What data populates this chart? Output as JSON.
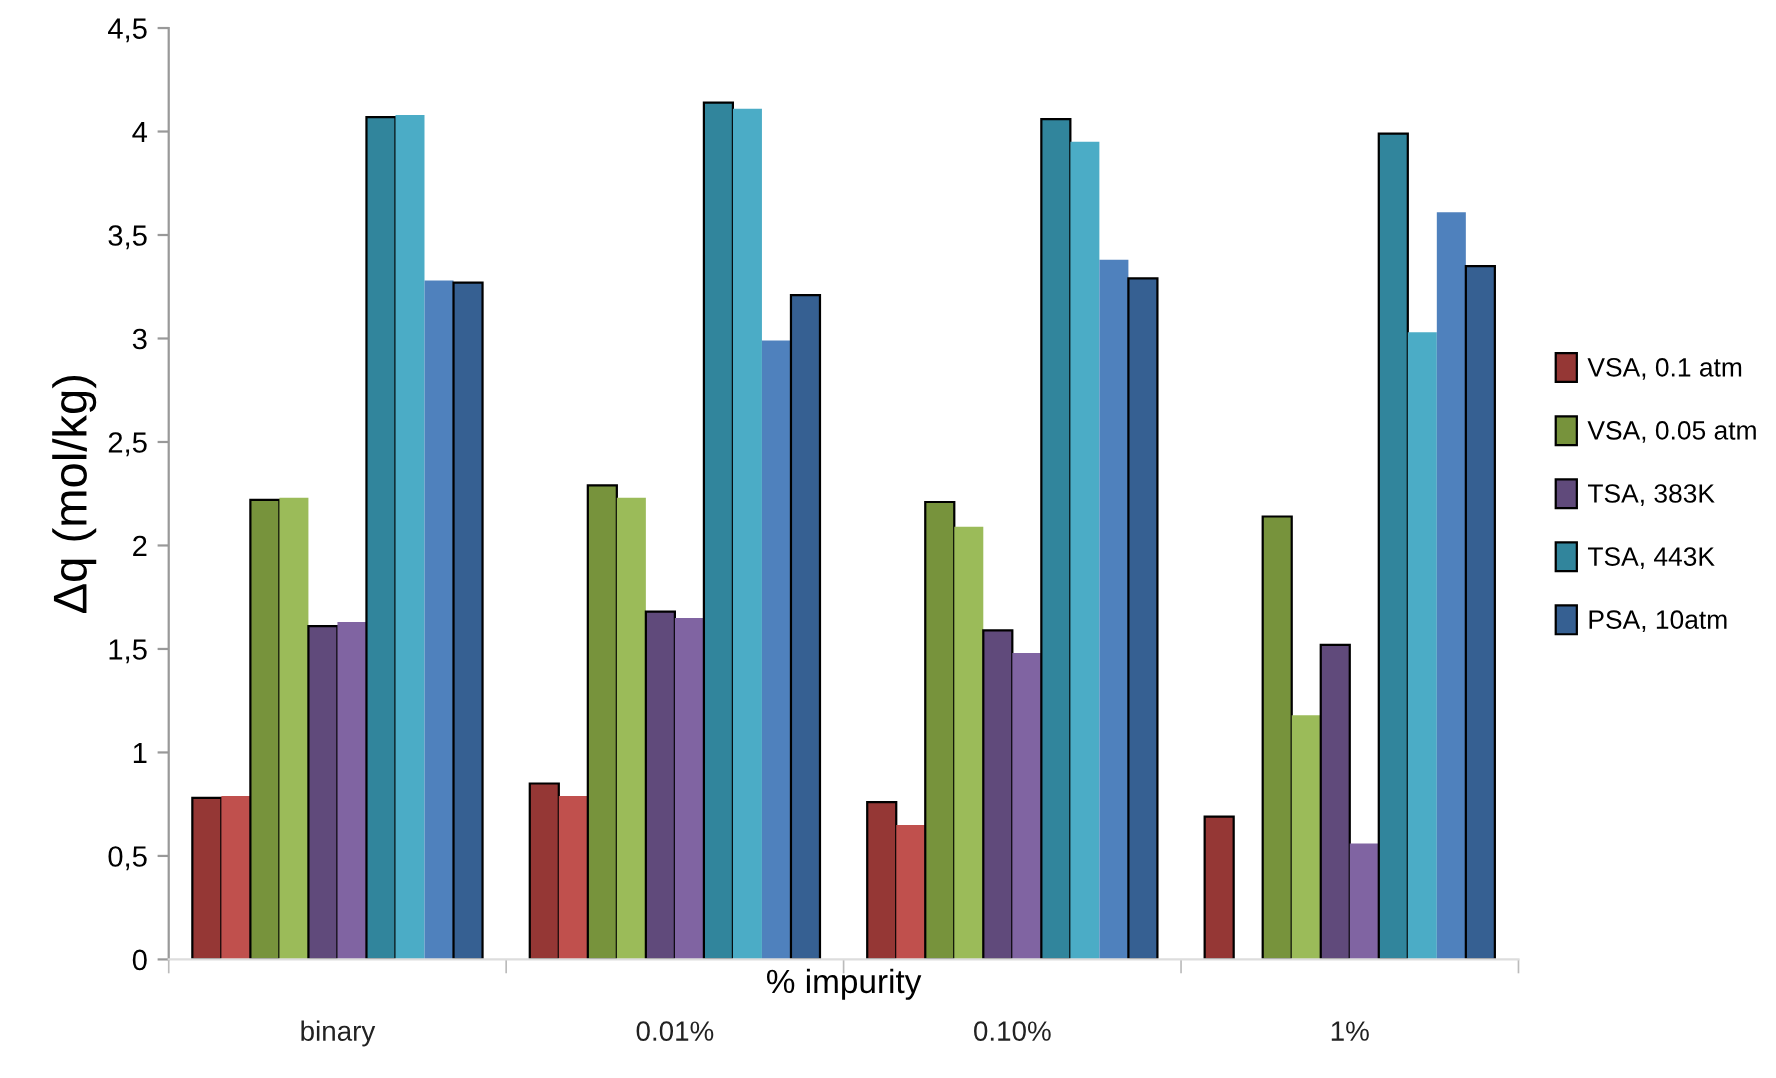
{
  "chart_data": {
    "type": "bar",
    "ylabel": "Δq (mol/kg)",
    "xlabel": "% impurity",
    "categories": [
      "binary",
      "0.01%",
      "0.10%",
      "1%"
    ],
    "ylim": [
      0,
      4.5
    ],
    "yticks": [
      0,
      {
        "value": 0.5,
        "label": "0,5"
      },
      1,
      {
        "value": 1.5,
        "label": "1,5"
      },
      2,
      {
        "value": 2.5,
        "label": "2,5"
      },
      3,
      {
        "value": 3.5,
        "label": "3,5"
      },
      4,
      {
        "value": 4.5,
        "label": "4,5"
      }
    ],
    "grid": false,
    "legend": "right",
    "series": [
      {
        "name": "VSA, 0.1 atm",
        "color": "#953735",
        "values": [
          0.78,
          0.85,
          0.76,
          0.69
        ]
      },
      {
        "color": "#c0504d",
        "values": [
          0.79,
          0.79,
          0.65,
          null
        ]
      },
      {
        "name": "VSA, 0.05 atm",
        "color": "#77933c",
        "values": [
          2.22,
          2.29,
          2.21,
          2.14
        ]
      },
      {
        "color": "#9bbb59",
        "values": [
          2.23,
          2.23,
          2.09,
          1.18
        ]
      },
      {
        "name": "TSA, 383K",
        "color": "#604a7b",
        "values": [
          1.61,
          1.68,
          1.59,
          1.52
        ]
      },
      {
        "color": "#8064a2",
        "values": [
          1.63,
          1.65,
          1.48,
          0.56
        ]
      },
      {
        "name": "TSA, 443K",
        "color": "#31859c",
        "values": [
          4.07,
          4.14,
          4.06,
          3.99
        ]
      },
      {
        "color": "#4bacc6",
        "values": [
          4.08,
          4.11,
          3.95,
          3.03
        ]
      },
      {
        "color": "#4f81bd",
        "values": [
          3.28,
          2.99,
          3.38,
          3.61
        ]
      },
      {
        "name": "PSA, 10atm",
        "color": "#366092",
        "values": [
          3.27,
          3.21,
          3.29,
          3.35
        ]
      }
    ]
  }
}
